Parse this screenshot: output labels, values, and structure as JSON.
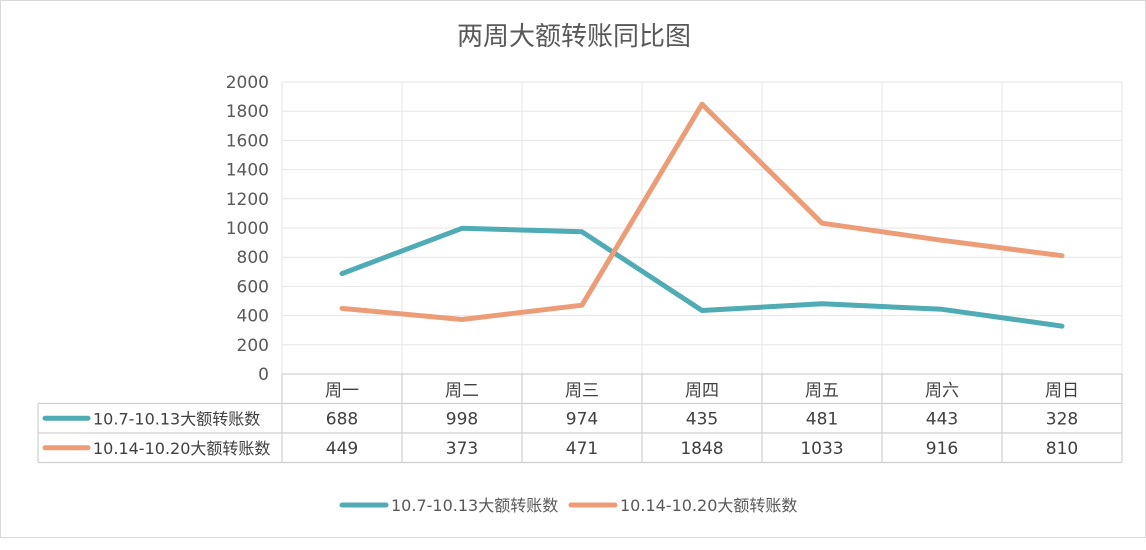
{
  "chart_data": {
    "type": "line",
    "title": "两周大额转账同比图",
    "categories": [
      "周一",
      "周二",
      "周三",
      "周四",
      "周五",
      "周六",
      "周日"
    ],
    "ylim": [
      0,
      2000
    ],
    "yticks": [
      0,
      200,
      400,
      600,
      800,
      1000,
      1200,
      1400,
      1600,
      1800,
      2000
    ],
    "grid": true,
    "legend_position": "bottom",
    "data_table": true,
    "series": [
      {
        "name": "10.7-10.13大额转账数",
        "color": "#4fabb4",
        "values": [
          688,
          998,
          974,
          435,
          481,
          443,
          328
        ]
      },
      {
        "name": "10.14-10.20大额转账数",
        "color": "#ec9d78",
        "values": [
          449,
          373,
          471,
          1848,
          1033,
          916,
          810
        ]
      }
    ]
  }
}
